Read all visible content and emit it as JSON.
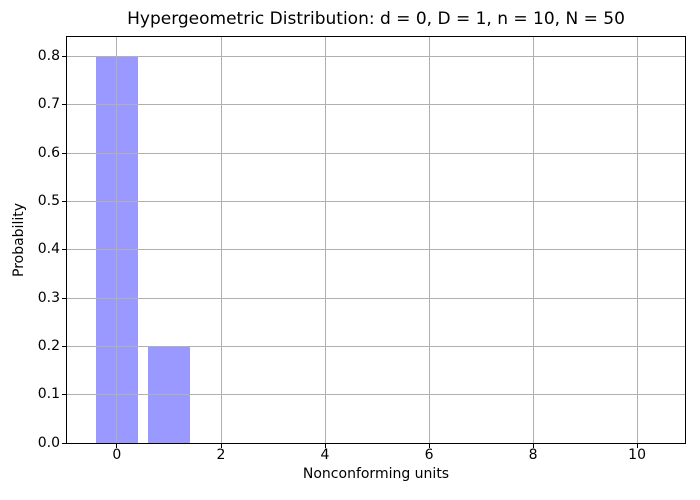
{
  "figure": {
    "background": "#ffffff",
    "spine_color": "#000000",
    "text_color": "#000000"
  },
  "chart_data": {
    "type": "bar",
    "title": "Hypergeometric Distribution: d = 0, D = 1, n = 10, N = 50",
    "xlabel": "Nonconforming units",
    "ylabel": "Probability",
    "x": [
      0,
      1
    ],
    "values": [
      0.8,
      0.2
    ],
    "bar_width": 0.8,
    "bar_color": "#0000ff",
    "bar_alpha": 0.4,
    "bar_color_effective": "#9999ff",
    "xlim": [
      -0.96,
      10.92
    ],
    "ylim": [
      0,
      0.84
    ],
    "xticks": {
      "values": [
        0,
        2,
        4,
        6,
        8,
        10
      ],
      "labels": [
        "0",
        "2",
        "4",
        "6",
        "8",
        "10"
      ]
    },
    "yticks": {
      "values": [
        0.0,
        0.1,
        0.2,
        0.3,
        0.4,
        0.5,
        0.6,
        0.7,
        0.8
      ],
      "labels": [
        "0.0",
        "0.1",
        "0.2",
        "0.3",
        "0.4",
        "0.5",
        "0.6",
        "0.7",
        "0.8"
      ]
    },
    "grid": true,
    "grid_color": "#b0b0b0",
    "legend": false
  }
}
